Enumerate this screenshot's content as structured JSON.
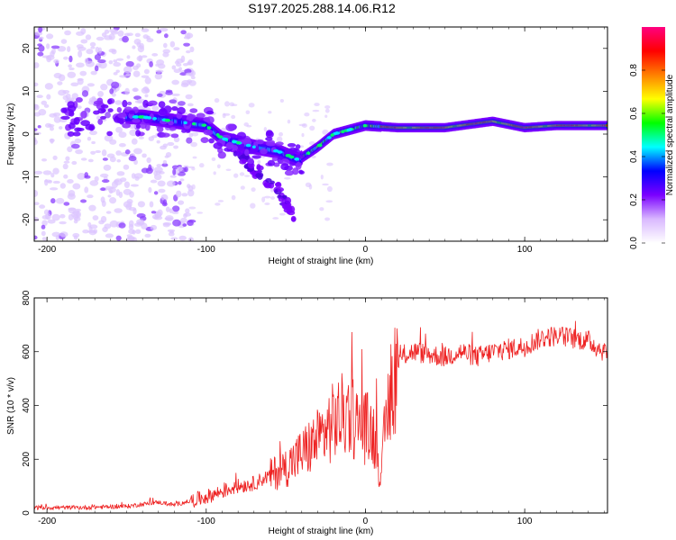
{
  "chart_data": [
    {
      "type": "heatmap",
      "title": "S197.2025.288.14.06.R12",
      "xlabel": "Height of straight line (km)",
      "ylabel": "Frequency (Hz)",
      "xlim": [
        -208,
        152
      ],
      "ylim": [
        -25,
        25
      ],
      "xticks": [
        -200,
        -100,
        0,
        100
      ],
      "yticks": [
        -20,
        -10,
        0,
        10,
        20
      ],
      "colorbar": {
        "label": "Normalized spectral amplitude",
        "range": [
          0,
          1
        ],
        "ticks": [
          0.0,
          0.2,
          0.4,
          0.6,
          0.8
        ],
        "colors": [
          "#ffffff",
          "#d9b8ff",
          "#7a00ff",
          "#0000ff",
          "#00ffff",
          "#00ff00",
          "#ffff00",
          "#ff8000",
          "#ff0000",
          "#ff0080"
        ]
      },
      "ridge": [
        {
          "x": -140,
          "f": 4
        },
        {
          "x": -120,
          "f": 3
        },
        {
          "x": -100,
          "f": 2
        },
        {
          "x": -90,
          "f": -1
        },
        {
          "x": -70,
          "f": -3
        },
        {
          "x": -55,
          "f": -4
        },
        {
          "x": -42,
          "f": -6
        },
        {
          "x": -30,
          "f": -3
        },
        {
          "x": -20,
          "f": 0
        },
        {
          "x": -10,
          "f": 1
        },
        {
          "x": 0,
          "f": 2
        },
        {
          "x": 20,
          "f": 1.5
        },
        {
          "x": 50,
          "f": 1.5
        },
        {
          "x": 80,
          "f": 3
        },
        {
          "x": 100,
          "f": 1.5
        },
        {
          "x": 120,
          "f": 2
        },
        {
          "x": 150,
          "f": 2
        }
      ],
      "secondary_branch": [
        {
          "x": -85,
          "f": -3
        },
        {
          "x": -70,
          "f": -8
        },
        {
          "x": -55,
          "f": -13
        },
        {
          "x": -45,
          "f": -19
        }
      ]
    },
    {
      "type": "line",
      "title": "",
      "xlabel": "Height of straight line (km)",
      "ylabel": "SNR (10 * v/v)",
      "xlim": [
        -208,
        152
      ],
      "ylim": [
        0,
        800
      ],
      "xticks": [
        -200,
        -100,
        0,
        100
      ],
      "yticks": [
        0,
        200,
        400,
        600,
        800
      ],
      "series": [
        {
          "name": "SNR",
          "color": "#ee2222",
          "x": [
            -208,
            -180,
            -150,
            -130,
            -120,
            -100,
            -90,
            -80,
            -70,
            -60,
            -50,
            -40,
            -30,
            -20,
            -15,
            -10,
            -5,
            0,
            5,
            8,
            10,
            12,
            15,
            20,
            25,
            30,
            40,
            50,
            60,
            70,
            80,
            90,
            100,
            110,
            120,
            130,
            140,
            150
          ],
          "values": [
            20,
            20,
            25,
            40,
            30,
            60,
            80,
            100,
            110,
            140,
            170,
            220,
            270,
            340,
            360,
            380,
            330,
            320,
            300,
            200,
            120,
            300,
            420,
            560,
            590,
            600,
            590,
            580,
            600,
            580,
            600,
            610,
            620,
            650,
            660,
            650,
            640,
            600
          ],
          "noise": 40
        }
      ]
    }
  ]
}
